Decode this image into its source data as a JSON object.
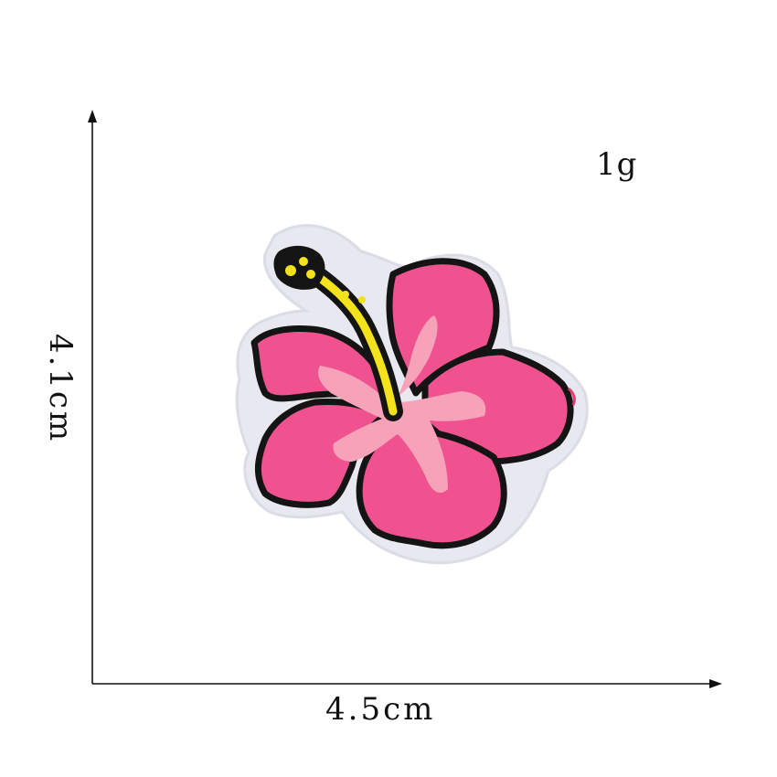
{
  "labels": {
    "weight": "1g",
    "width": "4.5cm",
    "height": "4.1cm"
  },
  "image": {
    "subject": "hibiscus-flower-embroidered-patch"
  },
  "colors": {
    "petal_pink": "#f0528f",
    "petal_light": "#f6a2b8",
    "outline": "#141414",
    "stamen_yellow": "#f3e21c",
    "backing": "#e8e8f0",
    "axis": "#111111"
  }
}
